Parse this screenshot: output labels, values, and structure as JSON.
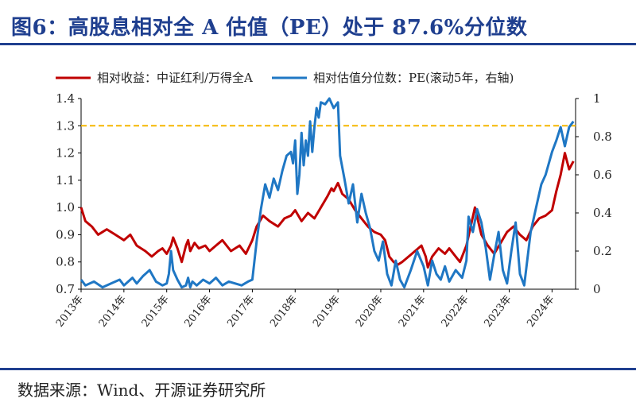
{
  "header": {
    "title": "图6：高股息相对全 A 估值（PE）处于 87.6%分位数"
  },
  "footer": {
    "source": "数据来源：Wind、开源证券研究所"
  },
  "colors": {
    "title_blue": "#1f3f8f",
    "series_red": "#c00000",
    "series_blue": "#1f77c4",
    "reference_line": "#f5b700"
  },
  "chart_data": {
    "type": "line",
    "title": "图6：高股息相对全 A 估值（PE）处于 87.6%分位数",
    "legend_position": "top",
    "grid": false,
    "x_tick_labels": [
      "2013年",
      "2014年",
      "2015年",
      "2016年",
      "2017年",
      "2018年",
      "2019年",
      "2020年",
      "2021年",
      "2022年",
      "2023年",
      "2024年"
    ],
    "xlim": [
      2013.0,
      2024.55
    ],
    "y_left": {
      "ylim": [
        0.7,
        1.4
      ],
      "ticks": [
        "0.7",
        "0.8",
        "0.9",
        "1.0",
        "1.1",
        "1.2",
        "1.3",
        "1.4"
      ]
    },
    "y_right": {
      "ylim": [
        0,
        1
      ],
      "ticks": [
        "0",
        "0.2",
        "0.4",
        "0.6",
        "0.8",
        "1"
      ]
    },
    "reference_line": {
      "axis": "left",
      "y": 1.3,
      "style": "dashed"
    },
    "series": [
      {
        "name": "相对收益：中证红利/万得全A",
        "axis": "left",
        "color": "#c00000",
        "x": [
          2013.0,
          2013.1,
          2013.25,
          2013.4,
          2013.6,
          2013.8,
          2014.0,
          2014.15,
          2014.3,
          2014.5,
          2014.65,
          2014.8,
          2014.9,
          2015.0,
          2015.1,
          2015.15,
          2015.25,
          2015.35,
          2015.45,
          2015.5,
          2015.55,
          2015.65,
          2015.75,
          2015.9,
          2016.0,
          2016.15,
          2016.3,
          2016.5,
          2016.7,
          2016.85,
          2017.0,
          2017.1,
          2017.25,
          2017.4,
          2017.6,
          2017.75,
          2017.9,
          2018.0,
          2018.15,
          2018.3,
          2018.45,
          2018.6,
          2018.75,
          2018.85,
          2018.9,
          2019.0,
          2019.1,
          2019.25,
          2019.4,
          2019.55,
          2019.7,
          2019.85,
          2020.0,
          2020.1,
          2020.2,
          2020.3,
          2020.4,
          2020.5,
          2020.65,
          2020.8,
          2020.95,
          2021.05,
          2021.1,
          2021.2,
          2021.35,
          2021.5,
          2021.6,
          2021.75,
          2021.85,
          2022.0,
          2022.1,
          2022.2,
          2022.35,
          2022.5,
          2022.65,
          2022.8,
          2022.95,
          2023.1,
          2023.25,
          2023.4,
          2023.55,
          2023.7,
          2023.85,
          2024.0,
          2024.1,
          2024.2,
          2024.3,
          2024.4,
          2024.5
        ],
        "values": [
          1.0,
          0.95,
          0.93,
          0.9,
          0.92,
          0.9,
          0.88,
          0.9,
          0.86,
          0.84,
          0.82,
          0.84,
          0.85,
          0.83,
          0.86,
          0.89,
          0.85,
          0.8,
          0.86,
          0.88,
          0.84,
          0.87,
          0.85,
          0.86,
          0.84,
          0.86,
          0.88,
          0.84,
          0.86,
          0.83,
          0.88,
          0.93,
          0.97,
          0.95,
          0.93,
          0.96,
          0.97,
          0.99,
          0.95,
          0.98,
          0.96,
          1.0,
          1.04,
          1.07,
          1.06,
          1.09,
          1.05,
          1.03,
          0.99,
          0.96,
          0.93,
          0.91,
          0.9,
          0.88,
          0.82,
          0.8,
          0.79,
          0.8,
          0.82,
          0.84,
          0.86,
          0.82,
          0.78,
          0.82,
          0.85,
          0.83,
          0.85,
          0.82,
          0.8,
          0.86,
          0.93,
          1.0,
          0.9,
          0.86,
          0.83,
          0.87,
          0.91,
          0.93,
          0.9,
          0.88,
          0.93,
          0.96,
          0.97,
          0.99,
          1.06,
          1.12,
          1.2,
          1.14,
          1.17
        ]
      },
      {
        "name": "相对估值分位数：PE(滚动5年，右轴)",
        "axis": "right",
        "color": "#1f77c4",
        "x": [
          2013.0,
          2013.1,
          2013.3,
          2013.5,
          2013.7,
          2013.9,
          2014.0,
          2014.2,
          2014.3,
          2014.45,
          2014.6,
          2014.75,
          2014.9,
          2015.0,
          2015.05,
          2015.1,
          2015.15,
          2015.25,
          2015.35,
          2015.45,
          2015.5,
          2015.55,
          2015.6,
          2015.7,
          2015.85,
          2016.0,
          2016.15,
          2016.3,
          2016.45,
          2016.6,
          2016.75,
          2016.9,
          2017.0,
          2017.1,
          2017.2,
          2017.3,
          2017.4,
          2017.5,
          2017.6,
          2017.7,
          2017.8,
          2017.9,
          2017.95,
          2018.0,
          2018.05,
          2018.1,
          2018.15,
          2018.2,
          2018.25,
          2018.3,
          2018.35,
          2018.4,
          2018.45,
          2018.5,
          2018.55,
          2018.6,
          2018.7,
          2018.8,
          2018.9,
          2019.0,
          2019.05,
          2019.15,
          2019.25,
          2019.35,
          2019.45,
          2019.55,
          2019.65,
          2019.75,
          2019.85,
          2019.95,
          2020.05,
          2020.15,
          2020.25,
          2020.35,
          2020.45,
          2020.55,
          2020.7,
          2020.85,
          2021.0,
          2021.1,
          2021.2,
          2021.3,
          2021.4,
          2021.5,
          2021.6,
          2021.75,
          2021.9,
          2022.0,
          2022.05,
          2022.15,
          2022.25,
          2022.35,
          2022.45,
          2022.55,
          2022.65,
          2022.75,
          2022.85,
          2022.95,
          2023.05,
          2023.15,
          2023.25,
          2023.35,
          2023.5,
          2023.65,
          2023.75,
          2023.85,
          2024.0,
          2024.1,
          2024.2,
          2024.3,
          2024.4,
          2024.5
        ],
        "values": [
          0.05,
          0.02,
          0.04,
          0.01,
          0.03,
          0.05,
          0.02,
          0.06,
          0.03,
          0.07,
          0.1,
          0.04,
          0.02,
          0.03,
          0.08,
          0.2,
          0.1,
          0.05,
          0.01,
          0.02,
          0.06,
          0.01,
          0.04,
          0.02,
          0.05,
          0.03,
          0.06,
          0.02,
          0.04,
          0.03,
          0.02,
          0.04,
          0.05,
          0.25,
          0.42,
          0.55,
          0.48,
          0.58,
          0.52,
          0.62,
          0.7,
          0.72,
          0.66,
          0.78,
          0.5,
          0.6,
          0.82,
          0.65,
          0.78,
          0.7,
          0.88,
          0.72,
          0.85,
          0.95,
          0.9,
          0.98,
          0.97,
          1.0,
          0.95,
          0.98,
          0.7,
          0.58,
          0.45,
          0.55,
          0.35,
          0.5,
          0.4,
          0.32,
          0.2,
          0.15,
          0.25,
          0.08,
          0.02,
          0.15,
          0.05,
          0.01,
          0.1,
          0.2,
          0.12,
          0.02,
          0.15,
          0.08,
          0.05,
          0.12,
          0.04,
          0.1,
          0.06,
          0.15,
          0.38,
          0.3,
          0.42,
          0.35,
          0.22,
          0.05,
          0.18,
          0.3,
          0.1,
          0.03,
          0.2,
          0.35,
          0.08,
          0.02,
          0.3,
          0.45,
          0.55,
          0.6,
          0.72,
          0.78,
          0.85,
          0.75,
          0.85,
          0.88
        ]
      }
    ]
  }
}
